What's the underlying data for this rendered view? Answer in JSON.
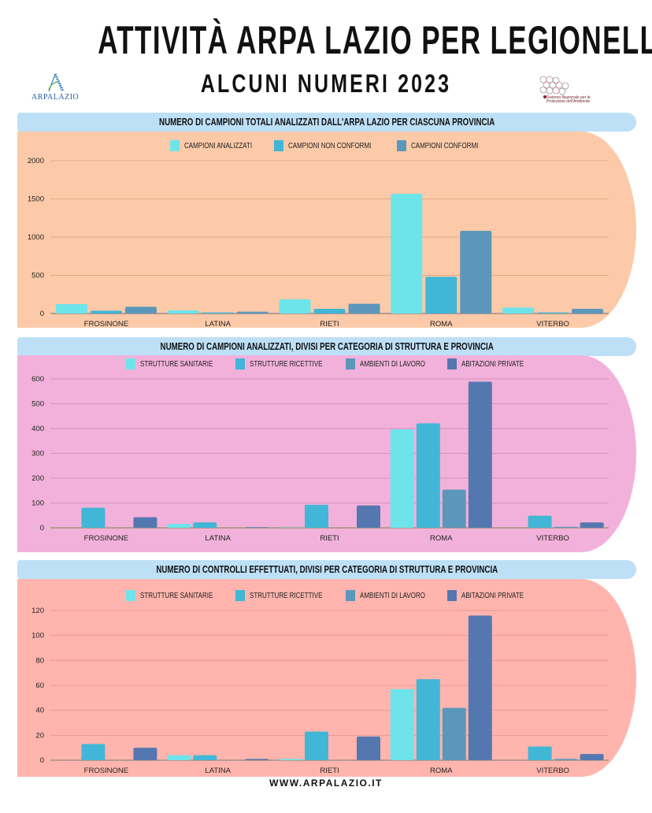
{
  "header": {
    "title": "ATTIVITÀ ARPA LAZIO PER LEGIONELLA",
    "subtitle": "ALCUNI NUMERI 2023",
    "logo_left": "ARPALAZIO",
    "logo_right": "Sistema Nazionale per la Protezione dell'Ambiente"
  },
  "colors": {
    "series": [
      "#6de4ea",
      "#41b6d6",
      "#5b97bb",
      "#5577b0"
    ],
    "banner": "#bde0f7",
    "panels": [
      "#fccaa8",
      "#f2b1db",
      "#ffb5ad"
    ]
  },
  "chart_data": [
    {
      "type": "bar",
      "title": "NUMERO  DI CAMPIONI TOTALI ANALIZZATI DALL'ARPA LAZIO PER CIASCUNA PROVINCIA",
      "categories": [
        "FROSINONE",
        "LATINA",
        "RIETI",
        "ROMA",
        "VITERBO"
      ],
      "series": [
        {
          "name": "CAMPIONI ANALIZZATI",
          "values": [
            124,
            41,
            186,
            1567,
            79
          ]
        },
        {
          "name": "CAMPIONI NON CONFORMI",
          "values": [
            38,
            14,
            62,
            481,
            14
          ]
        },
        {
          "name": "CAMPIONI CONFORMI",
          "values": [
            89,
            24,
            127,
            1082,
            62
          ]
        }
      ],
      "yticks": [
        "0",
        "500",
        "1000",
        "1500",
        "2000"
      ],
      "ylim": [
        0,
        2000
      ],
      "grid": true,
      "legend": "top"
    },
    {
      "type": "bar",
      "title": "NUMERO DI CAMPIONI ANALIZZATI, DIVISI PER CATEGORIA DI STRUTTURA E PROVINCIA",
      "categories": [
        "FROSINONE",
        "LATINA",
        "RIETI",
        "ROMA",
        "VITERBO"
      ],
      "series": [
        {
          "name": "STRUTTURE SANITARIE",
          "values": [
            0,
            16,
            1,
            397,
            0
          ]
        },
        {
          "name": "STRUTTURE RICETTIVE",
          "values": [
            81,
            22,
            93,
            421,
            49
          ]
        },
        {
          "name": "AMBIENTI DI LAVORO",
          "values": [
            0,
            0,
            0,
            154,
            4
          ]
        },
        {
          "name": "ABITAZIONI PRIVATE",
          "values": [
            43,
            2,
            90,
            589,
            22
          ]
        }
      ],
      "yticks": [
        "0",
        "100",
        "200",
        "300",
        "400",
        "500",
        "600"
      ],
      "ylim": [
        0,
        600
      ],
      "grid": true,
      "legend": "top"
    },
    {
      "type": "bar",
      "title": "NUMERO  DI CONTROLLI EFFETTUATI, DIVISI PER CATEGORIA DI STRUTTURA E PROVINCIA",
      "categories": [
        "FROSINONE",
        "LATINA",
        "RIETI",
        "ROMA",
        "VITERBO"
      ],
      "series": [
        {
          "name": "STRUTTURE SANITARIE",
          "values": [
            0,
            4,
            1,
            57,
            0
          ]
        },
        {
          "name": "STRUTTURE RICETTIVE",
          "values": [
            13,
            4,
            23,
            65,
            11
          ]
        },
        {
          "name": "AMBIENTI DI LAVORO",
          "values": [
            0,
            0,
            0,
            42,
            1
          ]
        },
        {
          "name": "ABITAZIONI PRIVATE",
          "values": [
            10,
            1,
            19,
            116,
            5
          ]
        }
      ],
      "yticks": [
        "0",
        "20",
        "40",
        "60",
        "80",
        "100",
        "120"
      ],
      "ylim": [
        0,
        120
      ],
      "grid": true,
      "legend": "top"
    }
  ],
  "footer": {
    "url": "WWW.ARPALAZIO.IT"
  }
}
